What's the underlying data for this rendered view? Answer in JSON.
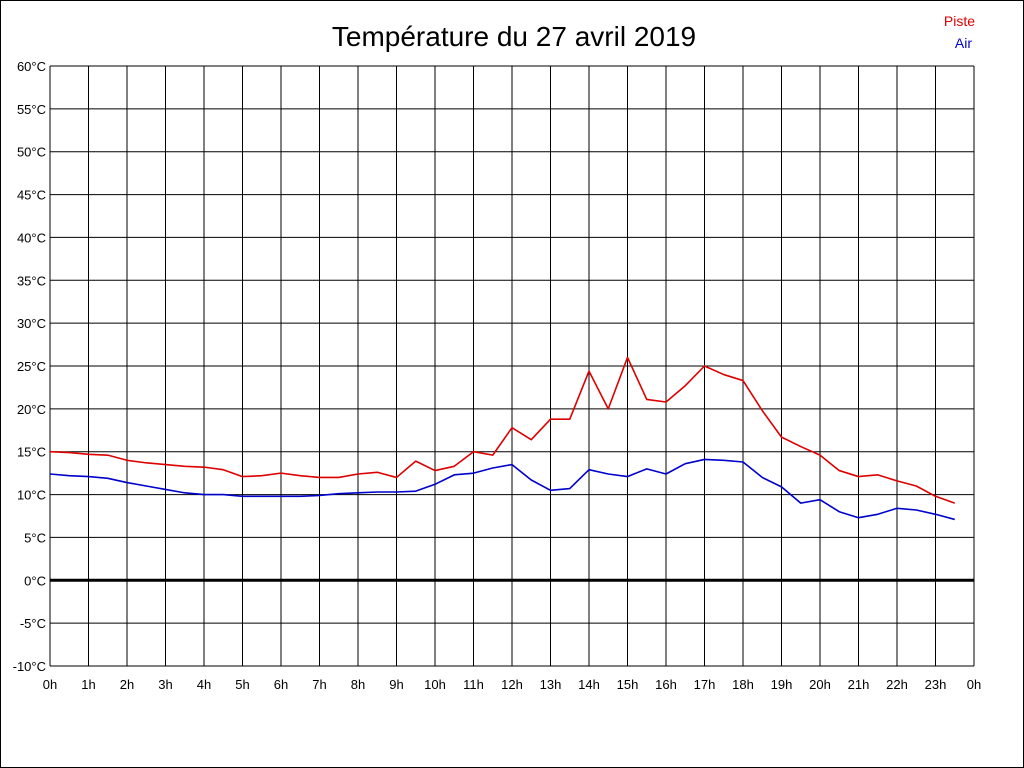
{
  "chart_data": {
    "type": "line",
    "title": "Température du 27 avril 2019",
    "x_ticks": [
      "0h",
      "1h",
      "2h",
      "3h",
      "4h",
      "5h",
      "6h",
      "7h",
      "8h",
      "9h",
      "10h",
      "11h",
      "12h",
      "13h",
      "14h",
      "15h",
      "16h",
      "17h",
      "18h",
      "19h",
      "20h",
      "21h",
      "22h",
      "23h",
      "0h"
    ],
    "y_ticks": [
      "60°C",
      "55°C",
      "50°C",
      "45°C",
      "40°C",
      "35°C",
      "30°C",
      "25°C",
      "20°C",
      "15°C",
      "10°C",
      "5°C",
      "0°C",
      "-5°C",
      "-10°C"
    ],
    "xlim": [
      0,
      24
    ],
    "ylim": [
      -10,
      60
    ],
    "grid": true,
    "zero_line": true,
    "legend_position": "top-right",
    "x": [
      0,
      0.5,
      1,
      1.5,
      2,
      2.5,
      3,
      3.5,
      4,
      4.5,
      5,
      5.5,
      6,
      6.5,
      7,
      7.5,
      8,
      8.5,
      9,
      9.5,
      10,
      10.5,
      11,
      11.5,
      12,
      12.5,
      13,
      13.5,
      14,
      14.5,
      15,
      15.5,
      16,
      16.5,
      17,
      17.5,
      18,
      18.5,
      19,
      19.5,
      20,
      20.5,
      21,
      21.5,
      22,
      22.5,
      23,
      23.5
    ],
    "series": [
      {
        "name": "Piste",
        "color": "#dd0000",
        "values": [
          15.0,
          14.9,
          14.7,
          14.6,
          14.0,
          13.7,
          13.5,
          13.3,
          13.2,
          12.9,
          12.1,
          12.2,
          12.5,
          12.2,
          12.0,
          12.0,
          12.4,
          12.6,
          12.0,
          13.9,
          12.8,
          13.3,
          15.0,
          14.6,
          17.8,
          16.4,
          18.8,
          18.8,
          24.4,
          20.0,
          26.0,
          21.1,
          20.8,
          22.7,
          25.0,
          24.0,
          23.3,
          19.8,
          16.7,
          15.6,
          14.6,
          12.8,
          12.1,
          12.3,
          11.6,
          11.0,
          9.8,
          9.0
        ]
      },
      {
        "name": "Air",
        "color": "#0000cc",
        "values": [
          12.4,
          12.2,
          12.1,
          11.9,
          11.4,
          11.0,
          10.6,
          10.2,
          10.0,
          10.0,
          9.8,
          9.8,
          9.8,
          9.8,
          9.9,
          10.1,
          10.2,
          10.3,
          10.3,
          10.4,
          11.2,
          12.3,
          12.5,
          13.1,
          13.5,
          11.7,
          10.5,
          10.7,
          12.9,
          12.4,
          12.1,
          13.0,
          12.4,
          13.6,
          14.1,
          14.0,
          13.8,
          12.0,
          10.9,
          9.0,
          9.4,
          8.0,
          7.3,
          7.7,
          8.4,
          8.2,
          7.7,
          7.1
        ]
      }
    ]
  }
}
